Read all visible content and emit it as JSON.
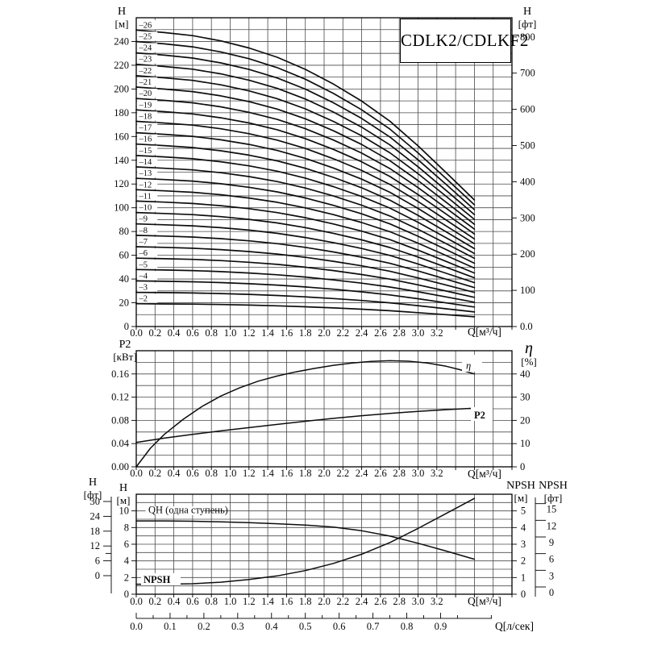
{
  "title_box": "CDLK2/CDLKF2",
  "axis_headers": {
    "top_left_sym": "H",
    "top_left_unit": "[м]",
    "top_right_sym": "H",
    "top_right_unit": "[фт]",
    "mid_left_sym": "P2",
    "mid_left_unit": "[кВт]",
    "mid_right_sym": "η",
    "mid_right_unit": "[%]",
    "bot_outer_sym": "H",
    "bot_outer_unit": "[фт]",
    "bot_inner_sym": "H",
    "bot_inner_unit": "[м]",
    "npsh_m_sym": "NPSH",
    "npsh_m_unit": "[м]",
    "npsh_ft_sym": "NPSH",
    "npsh_ft_unit": "[фт]"
  },
  "inner_labels": {
    "eta": "η",
    "p2": "P2",
    "npsh": "NPSH",
    "qh_legend": "QH (одна ступень)"
  },
  "x_axis": {
    "label": "Q[м³/ч]",
    "tick_labels": [
      "0.0",
      "0.2",
      "0.4",
      "0.6",
      "0.8",
      "1.0",
      "1.2",
      "1.4",
      "1.6",
      "1.8",
      "2.0",
      "2.2",
      "2.4",
      "2.6",
      "2.8",
      "3.0",
      "3.2"
    ],
    "range": [
      0,
      4.0
    ],
    "grid_step": 0.2
  },
  "lps_axis": {
    "label": "Q[л/сек]",
    "tick_labels": [
      "0.0",
      "0.1",
      "0.2",
      "0.3",
      "0.4",
      "0.5",
      "0.6",
      "0.7",
      "0.8",
      "0.9"
    ],
    "conversion_m3h_per_lps": 3.6
  },
  "chart_data": [
    {
      "id": "head-curves",
      "type": "line",
      "title": "CDLK2/CDLKF2",
      "xlabel": "Q[м³/ч]",
      "ylabel_left": "H [м]",
      "ylabel_right": "H [фт]",
      "ylim": [
        0,
        260
      ],
      "y_grid_step": 10,
      "y_left_tick_labels": [
        "0",
        "20",
        "40",
        "60",
        "80",
        "100",
        "120",
        "140",
        "160",
        "180",
        "200",
        "220",
        "240"
      ],
      "y_right_tick_labels": [
        "0.0",
        "100",
        "200",
        "300",
        "400",
        "500",
        "600",
        "700",
        "800"
      ],
      "ft_per_m": 3.2808,
      "stage_labels": [
        "–2",
        "–3",
        "–4",
        "–5",
        "–6",
        "–7",
        "–8",
        "–9",
        "–10",
        "–11",
        "–12",
        "–13",
        "–14",
        "–15",
        "–16",
        "–17",
        "–18",
        "–19",
        "–20",
        "–21",
        "–22",
        "–23",
        "–24",
        "–25",
        "–26"
      ],
      "q": [
        0,
        0.3,
        0.6,
        0.9,
        1.2,
        1.5,
        1.8,
        2.1,
        2.4,
        2.7,
        3.0,
        3.3,
        3.6
      ],
      "head_per_stage_m": [
        9.6,
        9.52,
        9.42,
        9.25,
        9.02,
        8.72,
        8.33,
        7.85,
        7.3,
        6.65,
        5.85,
        4.98,
        4.1
      ]
    },
    {
      "id": "power-efficiency",
      "type": "line",
      "xlabel": "Q[м³/ч]",
      "ylabel_left": "P2 [кВт]",
      "ylabel_right": "η [%]",
      "ylim_left": [
        0,
        0.2
      ],
      "ylim_right": [
        0,
        50
      ],
      "y_grid_step_kw": 0.02,
      "y_left_tick_labels": [
        "0.00",
        "0.04",
        "0.08",
        "0.12",
        "0.16"
      ],
      "y_right_tick_labels": [
        "0",
        "10",
        "20",
        "30",
        "40"
      ],
      "series": [
        {
          "name": "η",
          "unit": "%",
          "q": [
            0,
            0.15,
            0.3,
            0.5,
            0.7,
            0.9,
            1.1,
            1.3,
            1.5,
            1.7,
            1.9,
            2.1,
            2.3,
            2.5,
            2.7,
            2.9,
            3.1,
            3.3,
            3.45,
            3.6
          ],
          "values": [
            0,
            8,
            14,
            20.5,
            26,
            30.5,
            34,
            36.9,
            39.1,
            40.9,
            42.4,
            43.7,
            44.7,
            45.4,
            45.7,
            45.5,
            44.7,
            43.3,
            41.8,
            40
          ]
        },
        {
          "name": "P2",
          "unit": "кВт",
          "q": [
            0,
            0.3,
            0.6,
            0.9,
            1.2,
            1.5,
            1.8,
            2.1,
            2.4,
            2.7,
            3.0,
            3.3,
            3.6
          ],
          "values": [
            0.042,
            0.0495,
            0.056,
            0.062,
            0.0675,
            0.073,
            0.0785,
            0.0835,
            0.088,
            0.092,
            0.0955,
            0.0985,
            0.101
          ]
        }
      ]
    },
    {
      "id": "qh-npsh",
      "type": "line",
      "xlabel": "Q[м³/ч]",
      "ylabel_inner_left": "H [м]",
      "ylabel_outer_left": "H [фт]",
      "ylabel_right_1": "NPSH [м]",
      "ylabel_right_2": "NPSH [фт]",
      "ylim_m": [
        0,
        12
      ],
      "y_grid_step_m": 1,
      "y_m_tick_labels": [
        "0",
        "2",
        "4",
        "6",
        "8",
        "10"
      ],
      "y_ft_tick_labels": [
        "30",
        "24",
        "18",
        "12",
        "6",
        "0"
      ],
      "npsh_m_tick_labels": [
        "5",
        "4",
        "3",
        "2",
        "1",
        "0"
      ],
      "npsh_ft_tick_labels": [
        "15",
        "12",
        "9",
        "6",
        "3",
        "0"
      ],
      "series": [
        {
          "name": "QH (одна ступень)",
          "unit": "м",
          "q": [
            0,
            0.3,
            0.6,
            0.9,
            1.2,
            1.5,
            1.8,
            2.1,
            2.4,
            2.7,
            3.0,
            3.3,
            3.6
          ],
          "values": [
            8.8,
            8.8,
            8.76,
            8.68,
            8.58,
            8.46,
            8.3,
            8.05,
            7.62,
            6.98,
            6.12,
            5.18,
            4.2
          ]
        },
        {
          "name": "NPSH",
          "unit": "м",
          "q": [
            0,
            0.3,
            0.6,
            0.9,
            1.2,
            1.5,
            1.8,
            2.1,
            2.4,
            2.7,
            3.0,
            3.3,
            3.6
          ],
          "values": [
            0.6,
            0.6,
            0.63,
            0.72,
            0.88,
            1.1,
            1.42,
            1.85,
            2.4,
            3.1,
            3.95,
            4.85,
            5.75
          ]
        }
      ]
    }
  ]
}
